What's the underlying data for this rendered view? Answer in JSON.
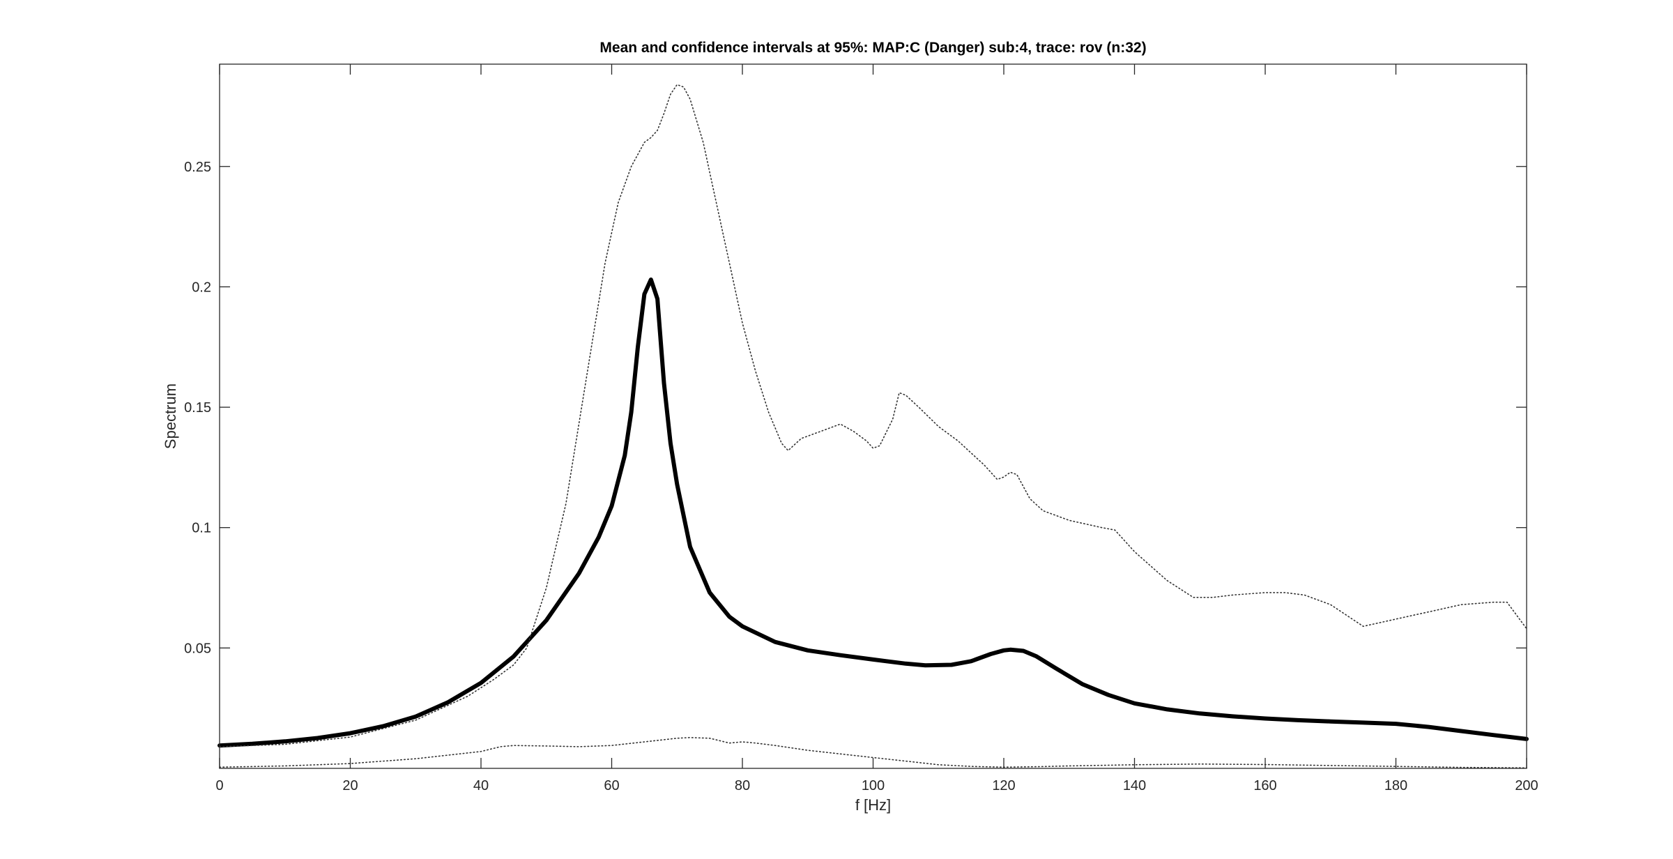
{
  "chart_data": {
    "type": "line",
    "title": "Mean and confidence intervals at 95%: MAP:C (Danger) sub:4, trace: rov (n:32)",
    "xlabel": "f [Hz]",
    "ylabel": "Spectrum",
    "xlim": [
      0,
      200
    ],
    "ylim": [
      0,
      0.2925
    ],
    "xticks": [
      0,
      20,
      40,
      60,
      80,
      100,
      120,
      140,
      160,
      180,
      200
    ],
    "xtick_labels": [
      "0",
      "20",
      "40",
      "60",
      "80",
      "100",
      "120",
      "140",
      "160",
      "180",
      "200"
    ],
    "yticks": [
      0.05,
      0.1,
      0.15,
      0.2,
      0.25
    ],
    "ytick_labels": [
      "0.05",
      "0.1",
      "0.15",
      "0.2",
      "0.25"
    ],
    "grid": false,
    "box": true,
    "series": [
      {
        "role": "mean",
        "style": "solid",
        "color": "#000000",
        "x": [
          0,
          5,
          10,
          15,
          20,
          25,
          30,
          35,
          40,
          45,
          50,
          55,
          58,
          60,
          62,
          63,
          64,
          65,
          66,
          67,
          68,
          69,
          70,
          72,
          75,
          78,
          80,
          85,
          90,
          95,
          100,
          105,
          108,
          112,
          115,
          118,
          120,
          121,
          123,
          125,
          128,
          132,
          136,
          140,
          145,
          150,
          155,
          160,
          165,
          170,
          175,
          180,
          185,
          190,
          195,
          200
        ],
        "y": [
          0.0095,
          0.0102,
          0.0112,
          0.0126,
          0.0146,
          0.0175,
          0.0215,
          0.0275,
          0.0355,
          0.0465,
          0.0615,
          0.081,
          0.096,
          0.109,
          0.13,
          0.148,
          0.175,
          0.197,
          0.203,
          0.195,
          0.16,
          0.135,
          0.118,
          0.092,
          0.073,
          0.063,
          0.059,
          0.0525,
          0.049,
          0.047,
          0.0452,
          0.0435,
          0.0428,
          0.043,
          0.0445,
          0.0475,
          0.049,
          0.0493,
          0.0488,
          0.0465,
          0.0415,
          0.035,
          0.0305,
          0.027,
          0.0245,
          0.0228,
          0.0216,
          0.0207,
          0.02,
          0.0195,
          0.019,
          0.0185,
          0.0172,
          0.0155,
          0.0138,
          0.0122
        ]
      },
      {
        "role": "upper-ci",
        "style": "dotted",
        "color": "#333333",
        "x": [
          0,
          10,
          20,
          30,
          38,
          42,
          45,
          47,
          50,
          53,
          56,
          59,
          61,
          63,
          65,
          66,
          67,
          68,
          69,
          70,
          71,
          72,
          74,
          76,
          78,
          80,
          82,
          84,
          86,
          87,
          89,
          92,
          95,
          97,
          99,
          100,
          101,
          103,
          104,
          105,
          107,
          110,
          113,
          115,
          117,
          119,
          120,
          121,
          122,
          124,
          126,
          130,
          135,
          137,
          140,
          145,
          149,
          152,
          155,
          160,
          163,
          166,
          170,
          175,
          180,
          185,
          190,
          195,
          197,
          200
        ],
        "y": [
          0.009,
          0.01,
          0.013,
          0.02,
          0.03,
          0.037,
          0.043,
          0.05,
          0.075,
          0.11,
          0.16,
          0.21,
          0.235,
          0.25,
          0.26,
          0.262,
          0.265,
          0.272,
          0.28,
          0.284,
          0.283,
          0.278,
          0.26,
          0.235,
          0.21,
          0.185,
          0.165,
          0.148,
          0.135,
          0.132,
          0.137,
          0.14,
          0.143,
          0.14,
          0.136,
          0.133,
          0.134,
          0.145,
          0.156,
          0.155,
          0.15,
          0.142,
          0.136,
          0.131,
          0.126,
          0.12,
          0.121,
          0.123,
          0.122,
          0.112,
          0.107,
          0.103,
          0.1,
          0.099,
          0.09,
          0.078,
          0.071,
          0.071,
          0.072,
          0.073,
          0.073,
          0.072,
          0.068,
          0.059,
          0.062,
          0.065,
          0.068,
          0.069,
          0.069,
          0.058
        ]
      },
      {
        "role": "lower-ci",
        "style": "dotted",
        "color": "#333333",
        "x": [
          0,
          10,
          20,
          30,
          40,
          43,
          45,
          50,
          55,
          60,
          65,
          70,
          72,
          75,
          78,
          80,
          82,
          85,
          90,
          95,
          100,
          105,
          110,
          115,
          120,
          125,
          130,
          140,
          150,
          160,
          170,
          180,
          190,
          200
        ],
        "y": [
          0.0005,
          0.001,
          0.002,
          0.004,
          0.007,
          0.009,
          0.0095,
          0.0093,
          0.009,
          0.0095,
          0.011,
          0.0125,
          0.0128,
          0.0125,
          0.0105,
          0.011,
          0.0105,
          0.0095,
          0.0075,
          0.006,
          0.0045,
          0.003,
          0.0015,
          0.0008,
          0.0005,
          0.0007,
          0.001,
          0.0015,
          0.0018,
          0.0016,
          0.0012,
          0.0008,
          0.0004,
          0.0002
        ]
      }
    ]
  }
}
